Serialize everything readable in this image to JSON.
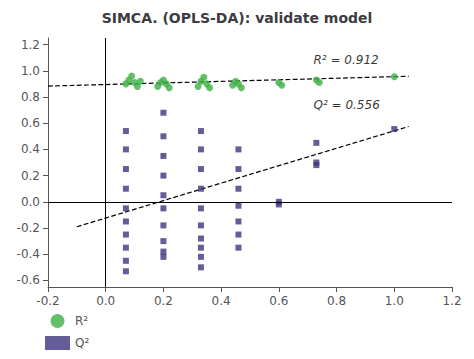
{
  "chart_data": {
    "type": "scatter",
    "title": "SIMCA. (OPLS-DA): validate model",
    "xlim": [
      -0.2,
      1.2
    ],
    "ylim": [
      -0.65,
      1.25
    ],
    "xticks": [
      -0.2,
      {
        "value": 0.0,
        "label": "0.0"
      },
      0.2,
      0.4,
      0.6,
      0.8,
      {
        "value": 1.0,
        "label": "1.0"
      },
      1.2
    ],
    "yticks": [
      -0.6,
      -0.4,
      -0.2,
      {
        "value": 0.0,
        "label": "0.0"
      },
      0.2,
      0.4,
      0.6,
      0.8,
      {
        "value": 1.0,
        "label": "1.0"
      },
      1.2
    ],
    "grid": false,
    "legend": "bottom left",
    "series": [
      {
        "name": "R²",
        "type": "scatter",
        "color": "#3cb043",
        "marker": "circle",
        "x": [
          0.07,
          0.08,
          0.09,
          0.1,
          0.11,
          0.12,
          0.18,
          0.19,
          0.2,
          0.21,
          0.22,
          0.32,
          0.33,
          0.34,
          0.35,
          0.36,
          0.44,
          0.45,
          0.46,
          0.47,
          0.6,
          0.61,
          0.73,
          0.74,
          1.0
        ],
        "values": [
          0.9,
          0.93,
          0.96,
          0.91,
          0.88,
          0.92,
          0.88,
          0.91,
          0.93,
          0.9,
          0.87,
          0.88,
          0.92,
          0.95,
          0.9,
          0.87,
          0.89,
          0.92,
          0.9,
          0.87,
          0.91,
          0.89,
          0.93,
          0.91,
          0.955
        ]
      },
      {
        "name": "Q²",
        "type": "scatter",
        "color": "#3d3580",
        "marker": "square",
        "x": [
          0.07,
          0.07,
          0.07,
          0.07,
          0.07,
          0.07,
          0.07,
          0.07,
          0.07,
          0.07,
          0.2,
          0.2,
          0.2,
          0.2,
          0.2,
          0.2,
          0.2,
          0.2,
          0.2,
          0.2,
          0.33,
          0.33,
          0.33,
          0.33,
          0.33,
          0.33,
          0.33,
          0.33,
          0.33,
          0.33,
          0.46,
          0.46,
          0.46,
          0.46,
          0.46,
          0.46,
          0.46,
          0.6,
          0.6,
          0.73,
          0.73,
          0.73,
          1.0
        ],
        "values": [
          0.54,
          0.4,
          0.25,
          0.1,
          -0.05,
          -0.15,
          -0.25,
          -0.35,
          -0.45,
          -0.53,
          0.5,
          0.35,
          0.2,
          0.05,
          -0.05,
          -0.18,
          -0.3,
          -0.38,
          -0.42,
          0.68,
          0.54,
          0.4,
          0.25,
          0.1,
          -0.05,
          -0.18,
          -0.28,
          -0.35,
          -0.42,
          -0.5,
          0.4,
          0.25,
          0.1,
          -0.03,
          -0.15,
          -0.25,
          -0.35,
          0.0,
          -0.02,
          0.45,
          0.3,
          0.28,
          0.555
        ]
      },
      {
        "type": "line",
        "line_style": "dashed",
        "color": "#000000",
        "x": [
          -0.2,
          1.05
        ],
        "values": [
          0.883,
          0.958
        ]
      },
      {
        "type": "line",
        "line_style": "dashed",
        "color": "#000000",
        "x": [
          -0.1,
          1.05
        ],
        "values": [
          -0.19,
          0.575
        ]
      }
    ],
    "reference_lines": [
      {
        "axis": "x",
        "value": 0.0,
        "color": "#000000"
      },
      {
        "axis": "y",
        "value": 0.0,
        "color": "#000000"
      }
    ],
    "annotations": [
      {
        "text": "R² = 0.912",
        "x": 0.72,
        "y": 1.08
      },
      {
        "text": "Q² = 0.556",
        "x": 0.72,
        "y": 0.74
      }
    ]
  }
}
